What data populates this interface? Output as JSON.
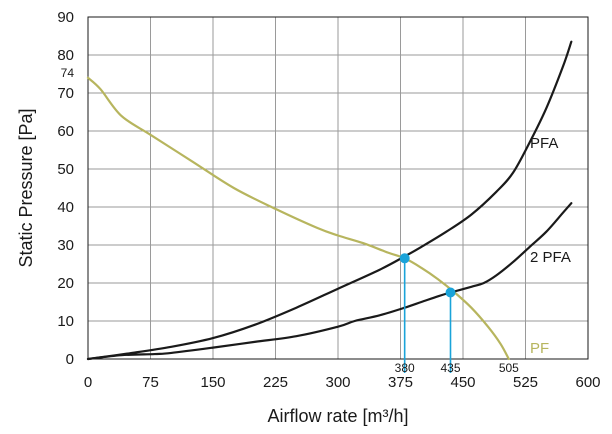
{
  "chart_data": {
    "type": "line",
    "title": "",
    "xlabel": "Airflow rate [m³/h]",
    "ylabel": "Static Pressure [Pa]",
    "xlim": [
      0,
      600
    ],
    "ylim": [
      0,
      90
    ],
    "xticks": [
      0,
      75,
      150,
      225,
      300,
      375,
      450,
      525,
      600
    ],
    "yticks": [
      0,
      10,
      20,
      30,
      40,
      50,
      60,
      70,
      80,
      90
    ],
    "xtick_labels": [
      "0",
      "75",
      "150",
      "225",
      "300",
      "375",
      "450",
      "525",
      "600"
    ],
    "ytick_labels": [
      "0",
      "10",
      "20",
      "30",
      "40",
      "50",
      "60",
      "70",
      "80",
      "90"
    ],
    "grid": true,
    "series": [
      {
        "name": "PF",
        "color": "#b7b55e",
        "x": [
          0,
          15,
          40,
          75,
          125,
          175,
          225,
          275,
          300,
          330,
          360,
          380,
          400,
          420,
          440,
          460,
          480,
          495,
          505
        ],
        "y": [
          74,
          71,
          64,
          59,
          52,
          45,
          39.5,
          34.5,
          32.5,
          30.5,
          28,
          26.5,
          24,
          21,
          17.5,
          13.5,
          8.5,
          4,
          0
        ]
      },
      {
        "name": "PFA",
        "color": "#1a1a1a",
        "x": [
          0,
          50,
          100,
          150,
          200,
          250,
          300,
          350,
          380,
          400,
          430,
          460,
          490,
          510,
          530,
          550,
          570,
          580
        ],
        "y": [
          0,
          1.5,
          3.2,
          5.5,
          9,
          13.5,
          18.5,
          23.5,
          27,
          29.5,
          33.5,
          38,
          44,
          49,
          57,
          66,
          77,
          83.5
        ]
      },
      {
        "name": "2 PFA",
        "color": "#1a1a1a",
        "x": [
          0,
          40,
          80,
          100,
          150,
          200,
          250,
          300,
          320,
          350,
          380,
          400,
          420,
          435,
          460,
          475,
          490,
          510,
          530,
          550,
          570,
          580
        ],
        "y": [
          0,
          1,
          1.3,
          1.6,
          3,
          4.5,
          6,
          8.5,
          10,
          11.5,
          13.5,
          15,
          16.5,
          17.5,
          19,
          20,
          22,
          25.5,
          29.5,
          33.5,
          38.5,
          41
        ]
      }
    ],
    "operating_points": [
      {
        "x": 380,
        "y": 26.5,
        "label": "380",
        "color": "#1aa3d9"
      },
      {
        "x": 435,
        "y": 17.5,
        "label": "435",
        "color": "#1aa3d9"
      }
    ],
    "annotations": {
      "y_marker_value": 74,
      "y_marker_label": "74",
      "pf_zero_label": "505",
      "pf_zero_x": 505
    }
  }
}
